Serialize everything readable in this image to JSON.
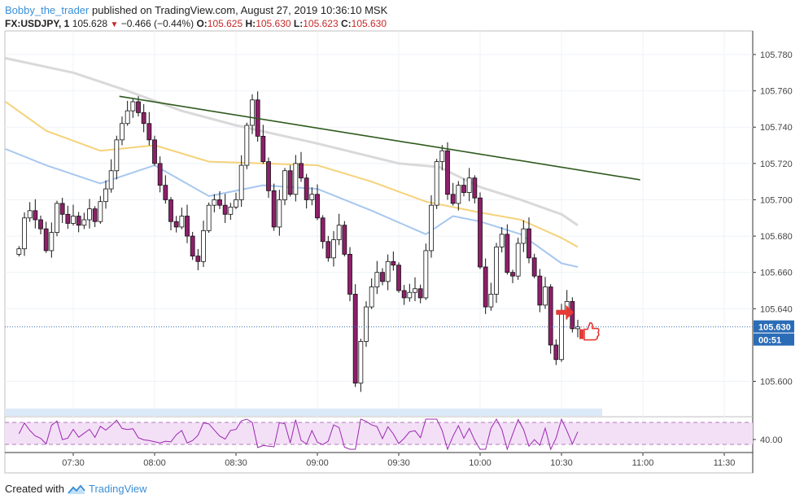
{
  "header": {
    "author": "Bobby_the_trader",
    "published": "published on TradingView.com, August 27, 2019 10:36:10 MSK",
    "symbol": "FX:USDJPY, 1",
    "last": "105.628",
    "change_arrow": "▼",
    "change": "−0.466 (−0.44%)",
    "o_label": "O:",
    "o": "105.625",
    "h_label": "H:",
    "h": "105.630",
    "l_label": "L:",
    "l": "105.623",
    "c_label": "C:",
    "c": "105.630"
  },
  "footer": {
    "created_with": "Created with",
    "brand": "TradingView",
    "brand_icon": "tradingview-logo-icon"
  },
  "colors": {
    "ema_grey": "#d9d9d9",
    "ema_orange": "#f5d27a",
    "ema_blue": "#a7c7ef",
    "trendline": "#2e5a1c",
    "candle_body": "#8e1f6a",
    "candle_wick": "#111111",
    "price_line": "#3a6fb0",
    "price_tag": "#2b6cb7",
    "rsi_line": "#9c27b0",
    "rsi_band": "#f3e0f7",
    "annotation": "#e53935"
  },
  "chart_data": {
    "type": "candlestick",
    "title": "",
    "timeframe": "1 minute",
    "x_tick_labels": [
      "07:30",
      "08:00",
      "08:30",
      "09:00",
      "09:30",
      "10:00",
      "10:30",
      "11:00",
      "11:30"
    ],
    "y_tick_labels": [
      "105.780",
      "105.760",
      "105.740",
      "105.720",
      "105.700",
      "105.680",
      "105.660",
      "105.640",
      "105.600"
    ],
    "ylim": [
      105.585,
      105.793
    ],
    "last_price_label": "105.630",
    "last_price": 105.63,
    "countdown_label": "00:51",
    "close_path": [
      [
        "07:10",
        105.673
      ],
      [
        "07:12",
        105.69
      ],
      [
        "07:14",
        105.694
      ],
      [
        "07:16",
        105.689
      ],
      [
        "07:18",
        105.684
      ],
      [
        "07:20",
        105.672
      ],
      [
        "07:22",
        105.682
      ],
      [
        "07:24",
        105.698
      ],
      [
        "07:26",
        105.692
      ],
      [
        "07:28",
        105.687
      ],
      [
        "07:30",
        105.691
      ],
      [
        "07:32",
        105.686
      ],
      [
        "07:34",
        105.689
      ],
      [
        "07:36",
        105.695
      ],
      [
        "07:38",
        105.688
      ],
      [
        "07:40",
        105.699
      ],
      [
        "07:42",
        105.706
      ],
      [
        "07:44",
        105.716
      ],
      [
        "07:46",
        105.733
      ],
      [
        "07:48",
        105.742
      ],
      [
        "07:50",
        105.749
      ],
      [
        "07:52",
        105.754
      ],
      [
        "07:54",
        105.748
      ],
      [
        "07:56",
        105.742
      ],
      [
        "07:58",
        105.733
      ],
      [
        "08:00",
        105.72
      ],
      [
        "08:02",
        105.708
      ],
      [
        "08:04",
        105.7
      ],
      [
        "08:06",
        105.688
      ],
      [
        "08:08",
        105.685
      ],
      [
        "08:10",
        105.691
      ],
      [
        "08:12",
        105.68
      ],
      [
        "08:14",
        105.669
      ],
      [
        "08:16",
        105.666
      ],
      [
        "08:18",
        105.683
      ],
      [
        "08:20",
        105.697
      ],
      [
        "08:22",
        105.7
      ],
      [
        "08:24",
        105.697
      ],
      [
        "08:26",
        105.692
      ],
      [
        "08:28",
        105.696
      ],
      [
        "08:30",
        105.7
      ],
      [
        "08:32",
        105.719
      ],
      [
        "08:34",
        105.741
      ],
      [
        "08:36",
        105.755
      ],
      [
        "08:38",
        105.735
      ],
      [
        "08:40",
        105.721
      ],
      [
        "08:42",
        105.705
      ],
      [
        "08:44",
        105.685
      ],
      [
        "08:46",
        105.7
      ],
      [
        "08:48",
        105.716
      ],
      [
        "08:50",
        105.703
      ],
      [
        "08:52",
        105.72
      ],
      [
        "08:54",
        105.712
      ],
      [
        "08:56",
        105.7
      ],
      [
        "08:58",
        105.703
      ],
      [
        "09:00",
        105.69
      ],
      [
        "09:02",
        105.677
      ],
      [
        "09:04",
        105.668
      ],
      [
        "09:06",
        105.678
      ],
      [
        "09:08",
        105.686
      ],
      [
        "09:10",
        105.67
      ],
      [
        "09:12",
        105.648
      ],
      [
        "09:14",
        105.599
      ],
      [
        "09:16",
        105.622
      ],
      [
        "09:18",
        105.641
      ],
      [
        "09:20",
        105.652
      ],
      [
        "09:22",
        105.66
      ],
      [
        "09:24",
        105.655
      ],
      [
        "09:26",
        105.666
      ],
      [
        "09:28",
        105.664
      ],
      [
        "09:30",
        105.65
      ],
      [
        "09:32",
        105.646
      ],
      [
        "09:34",
        105.649
      ],
      [
        "09:36",
        105.651
      ],
      [
        "09:38",
        105.646
      ],
      [
        "09:40",
        105.672
      ],
      [
        "09:42",
        105.697
      ],
      [
        "09:44",
        105.721
      ],
      [
        "09:46",
        105.727
      ],
      [
        "09:48",
        105.703
      ],
      [
        "09:50",
        105.698
      ],
      [
        "09:52",
        105.708
      ],
      [
        "09:54",
        105.704
      ],
      [
        "09:56",
        105.712
      ],
      [
        "09:58",
        105.701
      ],
      [
        "10:00",
        105.663
      ],
      [
        "10:02",
        105.641
      ],
      [
        "10:04",
        105.648
      ],
      [
        "10:06",
        105.674
      ],
      [
        "10:08",
        105.681
      ],
      [
        "10:10",
        105.66
      ],
      [
        "10:12",
        105.658
      ],
      [
        "10:14",
        105.676
      ],
      [
        "10:16",
        105.684
      ],
      [
        "10:18",
        105.668
      ],
      [
        "10:20",
        105.658
      ],
      [
        "10:22",
        105.642
      ],
      [
        "10:24",
        105.652
      ],
      [
        "10:26",
        105.62
      ],
      [
        "10:28",
        105.612
      ],
      [
        "10:30",
        105.638
      ],
      [
        "10:32",
        105.644
      ],
      [
        "10:34",
        105.629
      ],
      [
        "10:36",
        105.63
      ]
    ],
    "series": [
      {
        "name": "EMA (grey)",
        "points": [
          [
            "07:05",
            105.778
          ],
          [
            "07:30",
            105.77
          ],
          [
            "07:50",
            105.76
          ],
          [
            "08:10",
            105.749
          ],
          [
            "08:30",
            105.741
          ],
          [
            "09:00",
            105.731
          ],
          [
            "09:30",
            105.72
          ],
          [
            "09:45",
            105.718
          ],
          [
            "10:00",
            105.707
          ],
          [
            "10:15",
            105.7
          ],
          [
            "10:30",
            105.692
          ],
          [
            "10:36",
            105.686
          ]
        ]
      },
      {
        "name": "EMA (orange)",
        "points": [
          [
            "07:05",
            105.754
          ],
          [
            "07:20",
            105.738
          ],
          [
            "07:40",
            105.727
          ],
          [
            "08:00",
            105.73
          ],
          [
            "08:20",
            105.721
          ],
          [
            "08:40",
            105.72
          ],
          [
            "09:00",
            105.719
          ],
          [
            "09:20",
            105.71
          ],
          [
            "09:40",
            105.699
          ],
          [
            "10:00",
            105.693
          ],
          [
            "10:15",
            105.689
          ],
          [
            "10:30",
            105.679
          ],
          [
            "10:36",
            105.674
          ]
        ]
      },
      {
        "name": "EMA (blue)",
        "points": [
          [
            "07:05",
            105.728
          ],
          [
            "07:20",
            105.719
          ],
          [
            "07:40",
            105.709
          ],
          [
            "08:00",
            105.719
          ],
          [
            "08:20",
            105.702
          ],
          [
            "08:40",
            105.708
          ],
          [
            "09:00",
            105.706
          ],
          [
            "09:20",
            105.694
          ],
          [
            "09:40",
            105.681
          ],
          [
            "09:50",
            105.691
          ],
          [
            "10:00",
            105.688
          ],
          [
            "10:15",
            105.681
          ],
          [
            "10:30",
            105.665
          ],
          [
            "10:36",
            105.663
          ]
        ]
      }
    ],
    "trendline": {
      "from": [
        "07:47",
        105.757
      ],
      "to": [
        "10:59",
        105.711
      ]
    },
    "rsi_panel": {
      "y_tick_label": "40.00",
      "upper": 70,
      "lower": 30
    },
    "annotations": [
      {
        "type": "arrow",
        "icon": "red-arrow-right-icon"
      },
      {
        "type": "thumbs-up",
        "icon": "thumbs-up-icon"
      }
    ]
  }
}
